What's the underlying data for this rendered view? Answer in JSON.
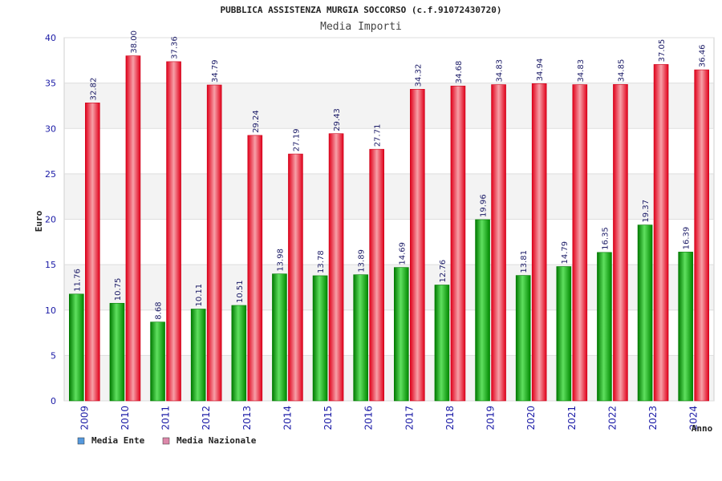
{
  "chart_data": {
    "type": "bar",
    "title": "PUBBLICA ASSISTENZA MURGIA SOCCORSO (c.f.91072430720)",
    "subtitle": "Media Importi",
    "xlabel": "Anno",
    "ylabel": "Euro",
    "ylim": [
      0,
      40
    ],
    "yticks": [
      0,
      5,
      10,
      15,
      20,
      25,
      30,
      35,
      40
    ],
    "categories": [
      "2009",
      "2010",
      "2011",
      "2012",
      "2013",
      "2014",
      "2015",
      "2016",
      "2017",
      "2018",
      "2019",
      "2020",
      "2021",
      "2022",
      "2023",
      "2024"
    ],
    "series": [
      {
        "name": "Media Ente",
        "color": "#11aa11",
        "values": [
          11.76,
          10.75,
          8.68,
          10.11,
          10.51,
          13.98,
          13.78,
          13.89,
          14.69,
          12.76,
          19.96,
          13.81,
          14.79,
          16.35,
          19.37,
          16.39
        ],
        "labels": [
          "11.76",
          "10.75",
          "8.68",
          "10.11",
          "10.51",
          "13.98",
          "13.78",
          "13.89",
          "14.69",
          "12.76",
          "19.96",
          "13.81",
          "14.79",
          "16.35",
          "19.37",
          "16.39"
        ]
      },
      {
        "name": "Media Nazionale",
        "color": "#ee1122",
        "values": [
          32.82,
          38.0,
          37.36,
          34.79,
          29.24,
          27.19,
          29.43,
          27.71,
          34.32,
          34.68,
          34.83,
          34.94,
          34.83,
          34.85,
          37.05,
          36.46
        ],
        "labels": [
          "32.82",
          "38.00",
          "37.36",
          "34.79",
          "29.24",
          "27.19",
          "29.43",
          "27.71",
          "34.32",
          "34.68",
          "34.83",
          "34.94",
          "34.83",
          "34.85",
          "37.05",
          "36.46"
        ]
      }
    ],
    "legend": [
      {
        "name": "Media Ente",
        "color": "#5599dd"
      },
      {
        "name": "Media Nazionale",
        "color": "#dd88aa"
      }
    ],
    "grid": true,
    "legend_position": "bottom-left"
  }
}
